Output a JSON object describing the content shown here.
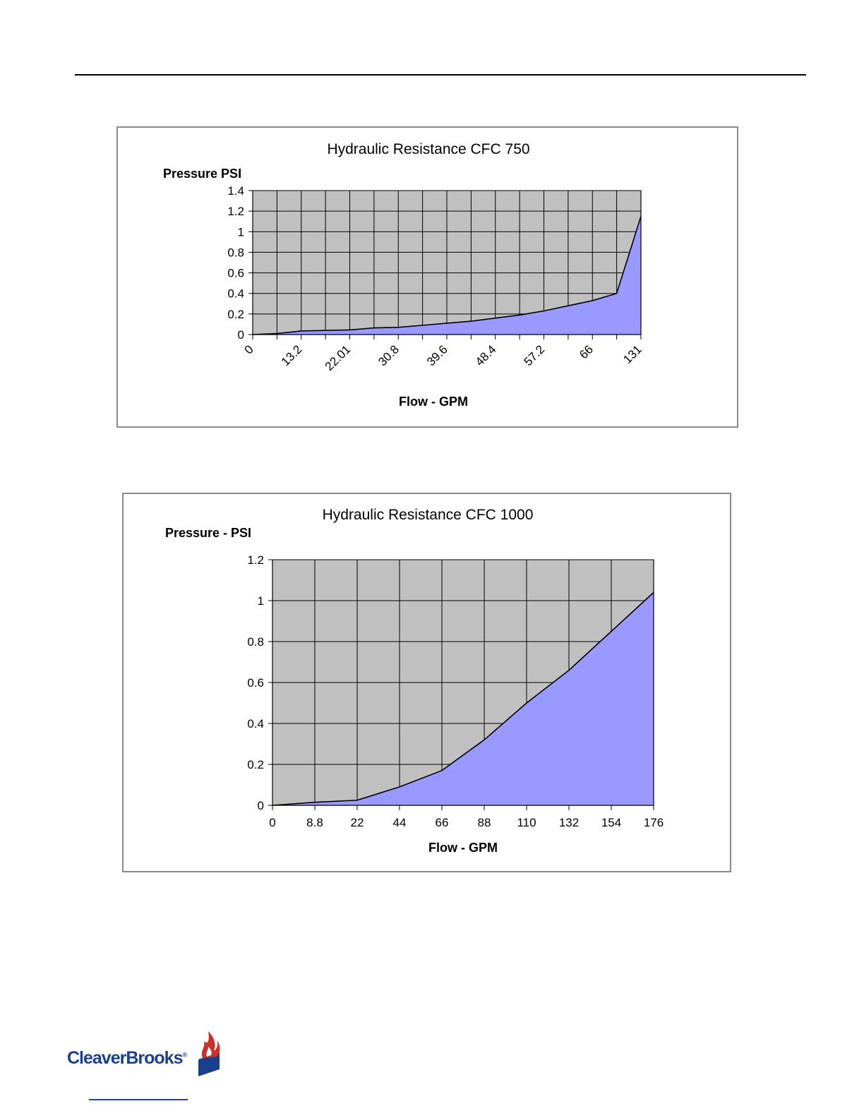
{
  "chart_data": [
    {
      "type": "area",
      "title": "Hydraulic Resistance CFC 750",
      "ylabel": "Pressure  PSI",
      "xlabel": "Flow - GPM",
      "ylim": [
        0,
        1.4
      ],
      "yticks": [
        "0",
        "0.2",
        "0.4",
        "0.6",
        "0.8",
        "1",
        "1.2",
        "1.4"
      ],
      "x_tick_labels": [
        "0",
        "13.2",
        "22.01",
        "30.8",
        "39.6",
        "48.4",
        "57.2",
        "66",
        "131"
      ],
      "x_tick_labels_rotated": true,
      "grid": true,
      "series": [
        {
          "color": "#9999ff",
          "values": [
            0,
            0.01,
            0.035,
            0.04,
            0.045,
            0.065,
            0.07,
            0.09,
            0.11,
            0.13,
            0.16,
            0.19,
            0.23,
            0.28,
            0.33,
            0.4,
            1.15
          ]
        }
      ]
    },
    {
      "type": "area",
      "title": "Hydraulic  Resistance CFC 1000",
      "ylabel": "Pressure - PSI",
      "xlabel": "Flow - GPM",
      "ylim": [
        0,
        1.2
      ],
      "yticks": [
        "0",
        "0.2",
        "0.4",
        "0.6",
        "0.8",
        "1",
        "1.2"
      ],
      "categories": [
        "0",
        "8.8",
        "22",
        "44",
        "66",
        "88",
        "110",
        "132",
        "154",
        "176"
      ],
      "grid": true,
      "series": [
        {
          "color": "#9999ff",
          "values": [
            0,
            0.015,
            0.025,
            0.09,
            0.17,
            0.32,
            0.5,
            0.66,
            0.85,
            1.04
          ]
        }
      ]
    }
  ],
  "footer": {
    "logo_text": "CleaverBrooks",
    "logo_mark": "®"
  },
  "colors": {
    "plot_background": "#c0c0c0",
    "area_fill": "#9999ff",
    "logo_blue": "#1b3f8f",
    "logo_red": "#c8322a"
  }
}
